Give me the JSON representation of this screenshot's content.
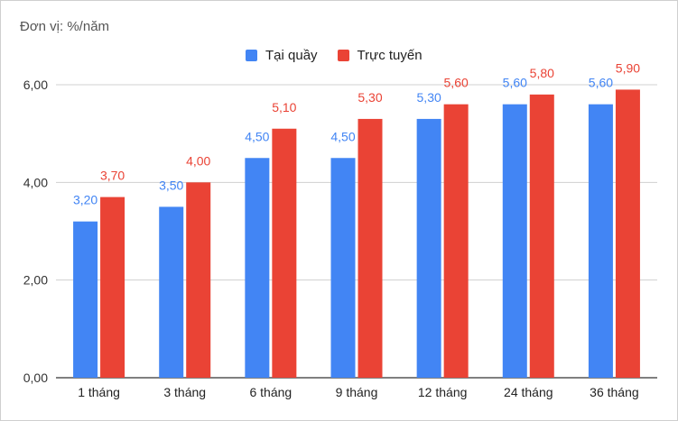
{
  "chart_data": {
    "type": "bar",
    "unit_label": "Đơn vị: %/năm",
    "categories": [
      "1 tháng",
      "3 tháng",
      "6 tháng",
      "9 tháng",
      "12 tháng",
      "24 tháng",
      "36 tháng"
    ],
    "series": [
      {
        "name": "Tại quầy",
        "color": "#4285f4",
        "values": [
          3.2,
          3.5,
          4.5,
          4.5,
          5.3,
          5.6,
          5.6
        ],
        "labels": [
          "3,20",
          "3,50",
          "4,50",
          "4,50",
          "5,30",
          "5,60",
          "5,60"
        ]
      },
      {
        "name": "Trực tuyến",
        "color": "#ea4335",
        "values": [
          3.7,
          4.0,
          5.1,
          5.3,
          5.6,
          5.8,
          5.9
        ],
        "labels": [
          "3,70",
          "4,00",
          "5,10",
          "5,30",
          "5,60",
          "5,80",
          "5,90"
        ]
      }
    ],
    "yticks": [
      0,
      2,
      4,
      6
    ],
    "ytick_labels": [
      "0,00",
      "2,00",
      "4,00",
      "6,00"
    ],
    "ylim": [
      0,
      6.0
    ],
    "grid": true,
    "legend_position": "top-center"
  }
}
